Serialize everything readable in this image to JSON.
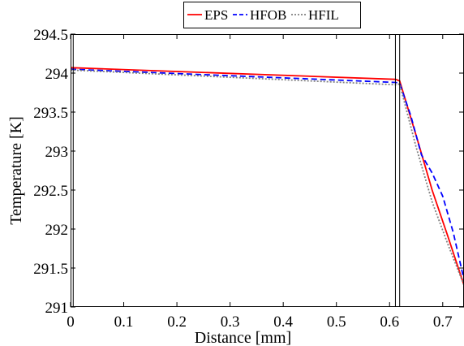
{
  "chart_data": {
    "type": "line",
    "xlabel": "Distance [mm]",
    "ylabel": "Temperature [K]",
    "xlim": [
      0,
      0.74
    ],
    "ylim": [
      291,
      294.5
    ],
    "xticks": [
      0,
      0.1,
      0.2,
      0.3,
      0.4,
      0.5,
      0.6,
      0.7
    ],
    "xtick_labels": [
      "0",
      "0.1",
      "0.2",
      "0.3",
      "0.4",
      "0.5",
      "0.6",
      "0.7"
    ],
    "yticks": [
      291,
      291.5,
      292,
      292.5,
      293,
      293.5,
      294,
      294.5
    ],
    "ytick_labels": [
      "291",
      "291.5",
      "292",
      "292.5",
      "293",
      "293.5",
      "294",
      "294.5"
    ],
    "grid": false,
    "legend": {
      "placement": "top-center",
      "orientation": "horizontal"
    },
    "vertical_lines": [
      0.005,
      0.611,
      0.619
    ],
    "series": [
      {
        "name": "EPS",
        "color": "#ff0000",
        "style": "solid",
        "x": [
          0,
          0.611,
          0.619,
          0.65,
          0.68,
          0.71,
          0.74
        ],
        "y": [
          294.07,
          293.92,
          293.9,
          293.2,
          292.5,
          291.9,
          291.28
        ]
      },
      {
        "name": "HFOB",
        "color": "#0000ff",
        "style": "dashed",
        "x": [
          0,
          0.611,
          0.619,
          0.64,
          0.66,
          0.68,
          0.7,
          0.72,
          0.74
        ],
        "y": [
          294.05,
          293.88,
          293.87,
          293.45,
          292.95,
          292.72,
          292.42,
          291.95,
          291.35
        ]
      },
      {
        "name": "HFIL",
        "color": "#808080",
        "style": "dotted",
        "x": [
          0,
          0.611,
          0.619,
          0.65,
          0.68,
          0.71,
          0.74
        ],
        "y": [
          294.04,
          293.85,
          293.86,
          293.05,
          292.35,
          291.8,
          291.28
        ]
      }
    ]
  }
}
